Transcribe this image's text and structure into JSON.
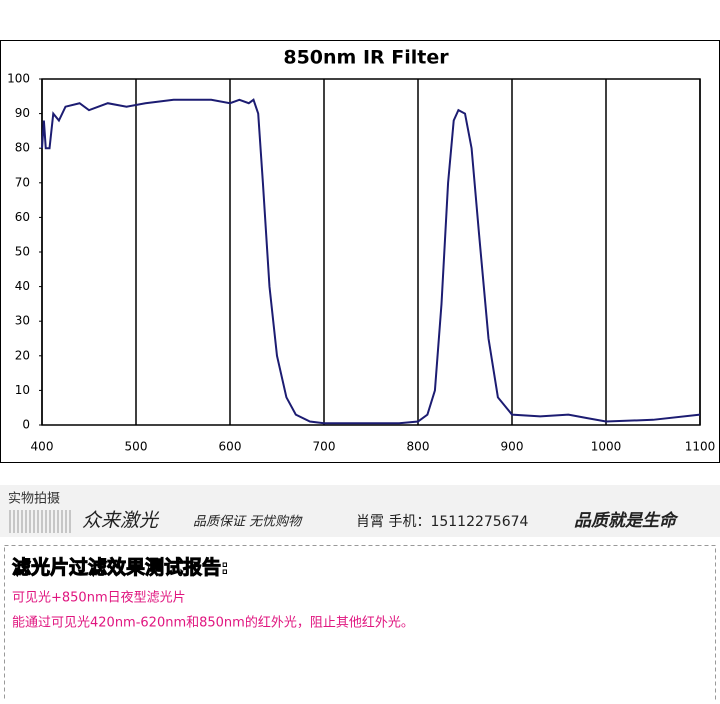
{
  "chart_data": {
    "type": "line",
    "title": "850nm IR Filter",
    "x": [
      400,
      402,
      404,
      408,
      412,
      418,
      425,
      440,
      450,
      470,
      490,
      510,
      540,
      560,
      580,
      600,
      610,
      620,
      625,
      630,
      635,
      642,
      650,
      660,
      670,
      685,
      700,
      750,
      780,
      800,
      810,
      818,
      825,
      832,
      838,
      843,
      850,
      857,
      865,
      875,
      885,
      900,
      930,
      960,
      980,
      1000,
      1050,
      1100
    ],
    "series": [
      {
        "color": "#1c1c72",
        "values": [
          80,
          88,
          80,
          80,
          90,
          88,
          92,
          93,
          91,
          93,
          92,
          93,
          94,
          94,
          94,
          93,
          94,
          93,
          94,
          90,
          70,
          40,
          20,
          8,
          3,
          1,
          0.5,
          0.5,
          0.5,
          1,
          3,
          10,
          35,
          70,
          88,
          91,
          90,
          80,
          55,
          25,
          8,
          3,
          2.5,
          3,
          2,
          1,
          1.5,
          3
        ]
      }
    ],
    "xlim": [
      400,
      1100
    ],
    "xticks": [
      400,
      500,
      600,
      700,
      800,
      900,
      1000,
      1100
    ],
    "ylim": [
      0,
      100
    ],
    "yticks": [
      0,
      10,
      20,
      30,
      40,
      50,
      60,
      70,
      80,
      90,
      100
    ],
    "grid": "x"
  },
  "banner": {
    "tag": "实物拍摄",
    "brand": "众来激光",
    "slogan": "品质保证 无忧购物",
    "contact": "肖霄 手机：15112275674",
    "motto": "品质就是生命"
  },
  "report": {
    "heading": "滤光片过滤效果测试报告:",
    "line1": "可见光+850nm日夜型滤光片",
    "line2": "能通过可见光420nm-620nm和850nm的红外光，阻止其他红外光。"
  }
}
